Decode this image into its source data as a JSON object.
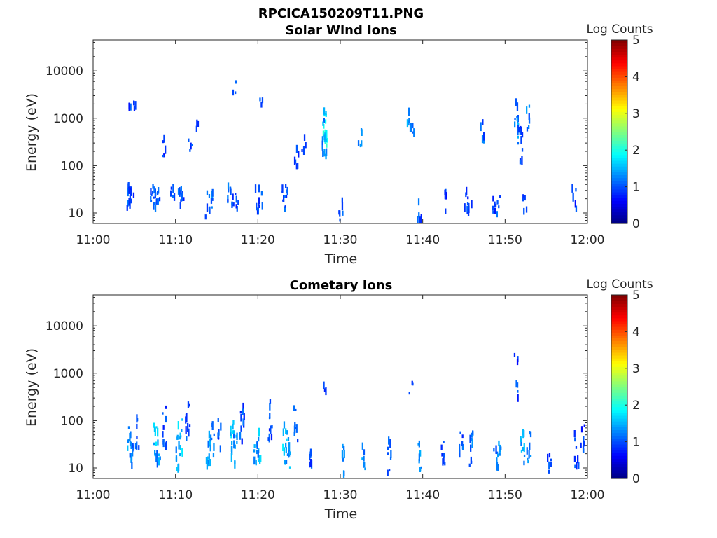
{
  "figure": {
    "title": "RPCICA150209T11.PNG"
  },
  "chart_data": [
    {
      "type": "heatmap",
      "title": "Solar Wind Ions",
      "xlabel": "Time",
      "ylabel": "Energy (eV)",
      "x_ticks": [
        "11:00",
        "11:10",
        "11:20",
        "11:30",
        "11:40",
        "11:50",
        "12:00"
      ],
      "x_range_minutes": [
        0,
        60
      ],
      "y_scale": "log",
      "y_ticks": [
        10,
        100,
        1000,
        10000
      ],
      "y_tick_labels": [
        "10",
        "100",
        "1000",
        "10000"
      ],
      "y_range": [
        6,
        45000
      ],
      "colorbar": {
        "label": "Log Counts",
        "range": [
          0,
          5
        ],
        "ticks": [
          "0",
          "1",
          "2",
          "3",
          "4",
          "5"
        ],
        "colormap": "jet"
      },
      "cells": [
        [
          4.2,
          20,
          1.0,
          0.5
        ],
        [
          4.3,
          28,
          1.0,
          0.3
        ],
        [
          4.6,
          22,
          1.0,
          0.3
        ],
        [
          6.9,
          27,
          1.0,
          0.3
        ],
        [
          7.3,
          18,
          1.0,
          0.6
        ],
        [
          7.8,
          22,
          1.1,
          0.4
        ],
        [
          9.6,
          22,
          1.0,
          0.3
        ],
        [
          10.4,
          20,
          1.0,
          0.4
        ],
        [
          10.8,
          24,
          0.9,
          0.3
        ],
        [
          13.8,
          15,
          1.0,
          0.4
        ],
        [
          14.2,
          20,
          1.2,
          0.3
        ],
        [
          16.4,
          24,
          1.1,
          0.3
        ],
        [
          16.8,
          22,
          1.0,
          0.4
        ],
        [
          17.3,
          20,
          1.0,
          0.3
        ],
        [
          19.8,
          20,
          1.0,
          0.4
        ],
        [
          20.2,
          16,
          1.0,
          0.3
        ],
        [
          23.0,
          22,
          1.1,
          0.3
        ],
        [
          23.4,
          20,
          1.0,
          0.4
        ],
        [
          28.1,
          500,
          1.9,
          0.5
        ],
        [
          28.2,
          800,
          1.6,
          0.6
        ],
        [
          28.0,
          300,
          1.3,
          0.8
        ],
        [
          30.0,
          11,
          1.0,
          0.4
        ],
        [
          32.3,
          400,
          1.2,
          0.3
        ],
        [
          38.3,
          1000,
          1.3,
          0.3
        ],
        [
          38.6,
          500,
          1.1,
          0.3
        ],
        [
          39.5,
          11,
          1.0,
          0.5
        ],
        [
          42.6,
          18,
          0.9,
          0.3
        ],
        [
          45.2,
          20,
          1.0,
          0.4
        ],
        [
          45.6,
          16,
          0.9,
          0.3
        ],
        [
          47.2,
          500,
          1.1,
          0.3
        ],
        [
          48.6,
          11,
          0.9,
          0.4
        ],
        [
          49.1,
          14,
          1.0,
          0.3
        ],
        [
          51.3,
          1000,
          1.2,
          0.6
        ],
        [
          51.6,
          500,
          1.4,
          0.4
        ],
        [
          51.8,
          300,
          1.0,
          0.7
        ],
        [
          52.7,
          1000,
          1.2,
          0.4
        ],
        [
          52.3,
          14,
          1.0,
          0.3
        ],
        [
          58.3,
          20,
          0.9,
          0.3
        ],
        [
          4.4,
          1800,
          0.9,
          0.1
        ],
        [
          5.0,
          2000,
          0.8,
          0.1
        ],
        [
          17.1,
          4500,
          0.9,
          0.1
        ],
        [
          20.4,
          2000,
          0.9,
          0.1
        ],
        [
          25.5,
          250,
          0.9,
          0.3
        ],
        [
          24.6,
          120,
          0.9,
          0.4
        ],
        [
          12.5,
          700,
          0.8,
          0.1
        ],
        [
          8.5,
          250,
          0.9,
          0.3
        ],
        [
          11.7,
          250,
          0.9,
          0.2
        ]
      ]
    },
    {
      "type": "heatmap",
      "title": "Cometary Ions",
      "xlabel": "Time",
      "ylabel": "Energy (eV)",
      "x_ticks": [
        "11:00",
        "11:10",
        "11:20",
        "11:30",
        "11:40",
        "11:50",
        "12:00"
      ],
      "x_range_minutes": [
        0,
        60
      ],
      "y_scale": "log",
      "y_ticks": [
        10,
        100,
        1000,
        10000
      ],
      "y_tick_labels": [
        "10",
        "100",
        "1000",
        "10000"
      ],
      "y_range": [
        6,
        45000
      ],
      "colorbar": {
        "label": "Log Counts",
        "range": [
          0,
          5
        ],
        "ticks": [
          "0",
          "1",
          "2",
          "3",
          "4",
          "5"
        ],
        "colormap": "jet"
      },
      "cells": [
        [
          4.3,
          35,
          1.4,
          0.6
        ],
        [
          4.6,
          20,
          1.2,
          0.5
        ],
        [
          5.3,
          60,
          1.0,
          0.6
        ],
        [
          7.5,
          35,
          1.6,
          0.7
        ],
        [
          7.8,
          20,
          1.3,
          0.6
        ],
        [
          8.6,
          70,
          1.0,
          0.8
        ],
        [
          10.5,
          40,
          1.6,
          0.8
        ],
        [
          10.1,
          22,
          1.4,
          0.6
        ],
        [
          11.4,
          100,
          1.0,
          0.7
        ],
        [
          13.9,
          25,
          1.4,
          0.7
        ],
        [
          14.4,
          40,
          1.2,
          0.6
        ],
        [
          15.2,
          60,
          1.0,
          0.6
        ],
        [
          16.8,
          45,
          1.6,
          0.8
        ],
        [
          17.2,
          25,
          1.3,
          0.6
        ],
        [
          18.0,
          80,
          1.0,
          0.7
        ],
        [
          20.0,
          30,
          1.5,
          0.7
        ],
        [
          19.7,
          18,
          1.3,
          0.5
        ],
        [
          21.4,
          100,
          1.0,
          0.7
        ],
        [
          23.2,
          35,
          1.6,
          0.8
        ],
        [
          23.6,
          20,
          1.4,
          0.6
        ],
        [
          24.5,
          80,
          1.0,
          0.6
        ],
        [
          26.2,
          13,
          1.0,
          0.4
        ],
        [
          28.0,
          450,
          0.9,
          0.1
        ],
        [
          30.2,
          14,
          1.2,
          0.5
        ],
        [
          32.8,
          16,
          1.3,
          0.5
        ],
        [
          35.8,
          18,
          1.1,
          0.6
        ],
        [
          38.5,
          500,
          0.8,
          0.1
        ],
        [
          39.5,
          18,
          1.3,
          0.6
        ],
        [
          42.4,
          20,
          1.0,
          0.5
        ],
        [
          45.8,
          25,
          1.2,
          0.7
        ],
        [
          44.6,
          40,
          1.0,
          0.5
        ],
        [
          49.2,
          22,
          1.2,
          0.6
        ],
        [
          48.8,
          14,
          1.1,
          0.4
        ],
        [
          51.2,
          2000,
          0.9,
          0.1
        ],
        [
          51.5,
          400,
          0.9,
          0.2
        ],
        [
          52.0,
          25,
          1.4,
          0.7
        ],
        [
          52.8,
          30,
          1.2,
          0.6
        ],
        [
          55.3,
          14,
          1.0,
          0.4
        ],
        [
          58.6,
          25,
          1.0,
          0.6
        ],
        [
          59.3,
          45,
          0.9,
          0.5
        ]
      ]
    }
  ],
  "colors": {
    "axis": "#262626",
    "background": "#ffffff"
  }
}
